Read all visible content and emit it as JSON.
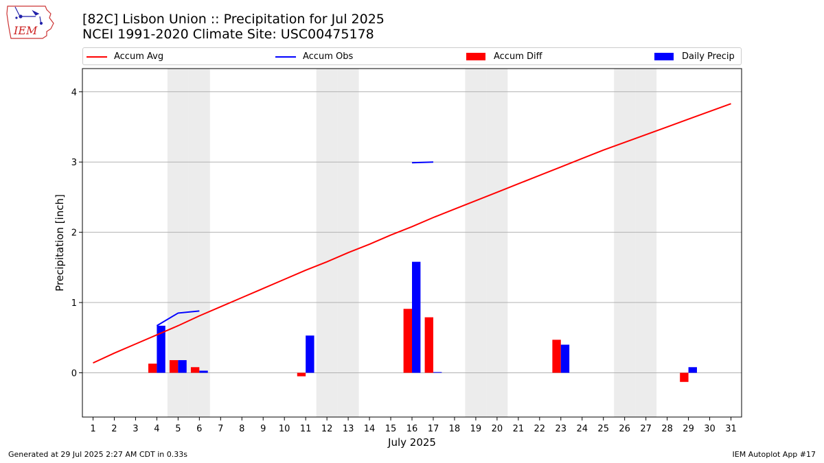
{
  "header": {
    "title_line1": "[82C] Lisbon Union :: Precipitation for Jul 2025",
    "title_line2": "NCEI 1991-2020 Climate Site: USC00475178"
  },
  "logo": {
    "text": "IEM",
    "icon": "iem-iowa-logo-icon"
  },
  "footer": {
    "generated": "Generated at 29 Jul 2025 2:27 AM CDT in 0.33s",
    "app": "IEM Autoplot App #17"
  },
  "colors": {
    "avg": "#ff0000",
    "obs": "#0000ff",
    "diff": "#ff0000",
    "daily": "#0000ff",
    "weekend": "#ececec",
    "grid": "#b0b0b0"
  },
  "chart_data": {
    "type": "bar",
    "xlabel": "July 2025",
    "ylabel": "Precipitation [inch]",
    "xlim": [
      0.5,
      31.5
    ],
    "ylim": [
      -0.63,
      4.33
    ],
    "yticks": [
      0,
      1,
      2,
      3,
      4
    ],
    "x": [
      1,
      2,
      3,
      4,
      5,
      6,
      7,
      8,
      9,
      10,
      11,
      12,
      13,
      14,
      15,
      16,
      17,
      18,
      19,
      20,
      21,
      22,
      23,
      24,
      25,
      26,
      27,
      28,
      29,
      30,
      31
    ],
    "weekend_days": [
      5,
      6,
      12,
      13,
      19,
      20,
      26,
      27
    ],
    "grid": true,
    "legend_position": "top",
    "series": [
      {
        "name": "Accum Avg",
        "kind": "line",
        "values": [
          0.14,
          0.28,
          0.41,
          0.54,
          0.67,
          0.81,
          0.94,
          1.07,
          1.2,
          1.33,
          1.46,
          1.58,
          1.71,
          1.83,
          1.96,
          2.08,
          2.21,
          2.33,
          2.45,
          2.57,
          2.69,
          2.81,
          2.93,
          3.05,
          3.17,
          3.28,
          3.39,
          3.5,
          3.61,
          3.72,
          3.83
        ]
      },
      {
        "name": "Accum Obs",
        "kind": "line",
        "segments": [
          {
            "x": [
              4,
              5,
              6
            ],
            "values": [
              0.67,
              0.85,
              0.88
            ]
          },
          {
            "x": [
              16,
              17
            ],
            "values": [
              2.99,
              3.0
            ]
          }
        ]
      },
      {
        "name": "Accum Diff",
        "kind": "bar",
        "values": [
          0,
          0,
          0,
          0.13,
          0.18,
          0.08,
          0,
          0,
          0,
          0,
          -0.05,
          0,
          0,
          0,
          0,
          0.91,
          0.79,
          0,
          0,
          0,
          0,
          0,
          0.47,
          0,
          0,
          0,
          0,
          0,
          -0.13,
          0,
          0
        ]
      },
      {
        "name": "Daily Precip",
        "kind": "bar",
        "values": [
          0,
          0,
          0,
          0.67,
          0.18,
          0.03,
          0,
          0,
          0,
          0,
          0.53,
          0,
          0,
          0,
          0,
          1.58,
          0.01,
          0,
          0,
          0,
          0,
          0,
          0.4,
          0,
          0,
          0,
          0,
          0,
          0.08,
          0,
          0
        ]
      }
    ]
  }
}
